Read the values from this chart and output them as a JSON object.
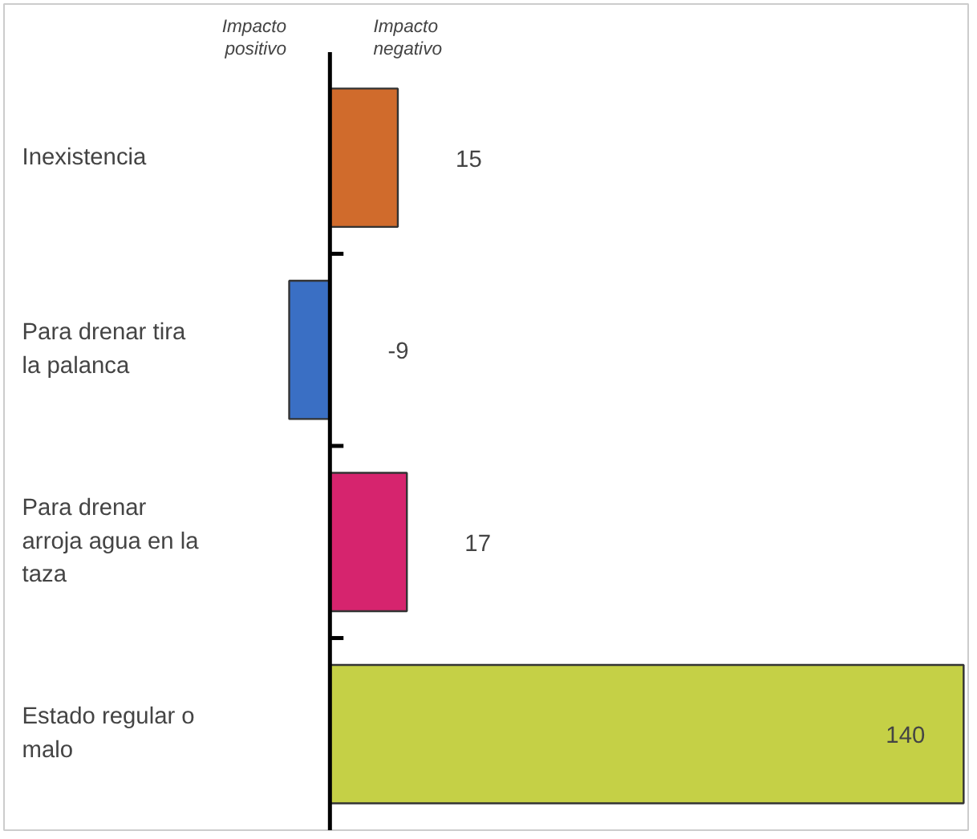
{
  "chart_data": {
    "type": "bar",
    "orientation": "horizontal",
    "categories": [
      "Inexistencia",
      "Para drenar tira la palanca",
      "Para drenar arroja agua en la taza",
      "Estado regular o malo"
    ],
    "values": [
      15,
      -9,
      17,
      140
    ],
    "colors": [
      "#d06b2c",
      "#3a6fc4",
      "#d6246e",
      "#c5d046"
    ],
    "xlim": [
      -72,
      141
    ],
    "data_labels": true,
    "annotations": [
      "Impacto positivo",
      "Impacto negativo"
    ],
    "tick_labels": false,
    "grid": false
  }
}
